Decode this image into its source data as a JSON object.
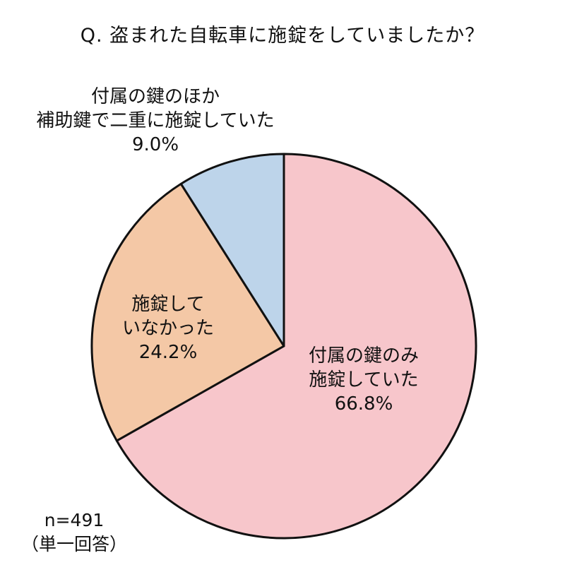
{
  "title": "Q. 盗まれた自転車に施錠をしていましたか？",
  "note": {
    "n": "n=491",
    "type": "（単一回答）"
  },
  "chart_data": {
    "type": "pie",
    "title": "Q. 盗まれた自転車に施錠をしていましたか？",
    "slices": [
      {
        "label_lines": [
          "付属の鍵のみ",
          "施錠していた"
        ],
        "value": 66.8,
        "percent_text": "66.8%",
        "color": "#f7c6cb"
      },
      {
        "label_lines": [
          "施錠して",
          "いなかった"
        ],
        "value": 24.2,
        "percent_text": "24.2%",
        "color": "#f4c8a6"
      },
      {
        "label_lines": [
          "付属の鍵のほか",
          "補助鍵で二重に施錠していた"
        ],
        "value": 9.0,
        "percent_text": "9.0%",
        "color": "#bdd4ea"
      }
    ],
    "start_angle_deg": 0,
    "direction": "clockwise",
    "stroke_color": "#111111"
  }
}
